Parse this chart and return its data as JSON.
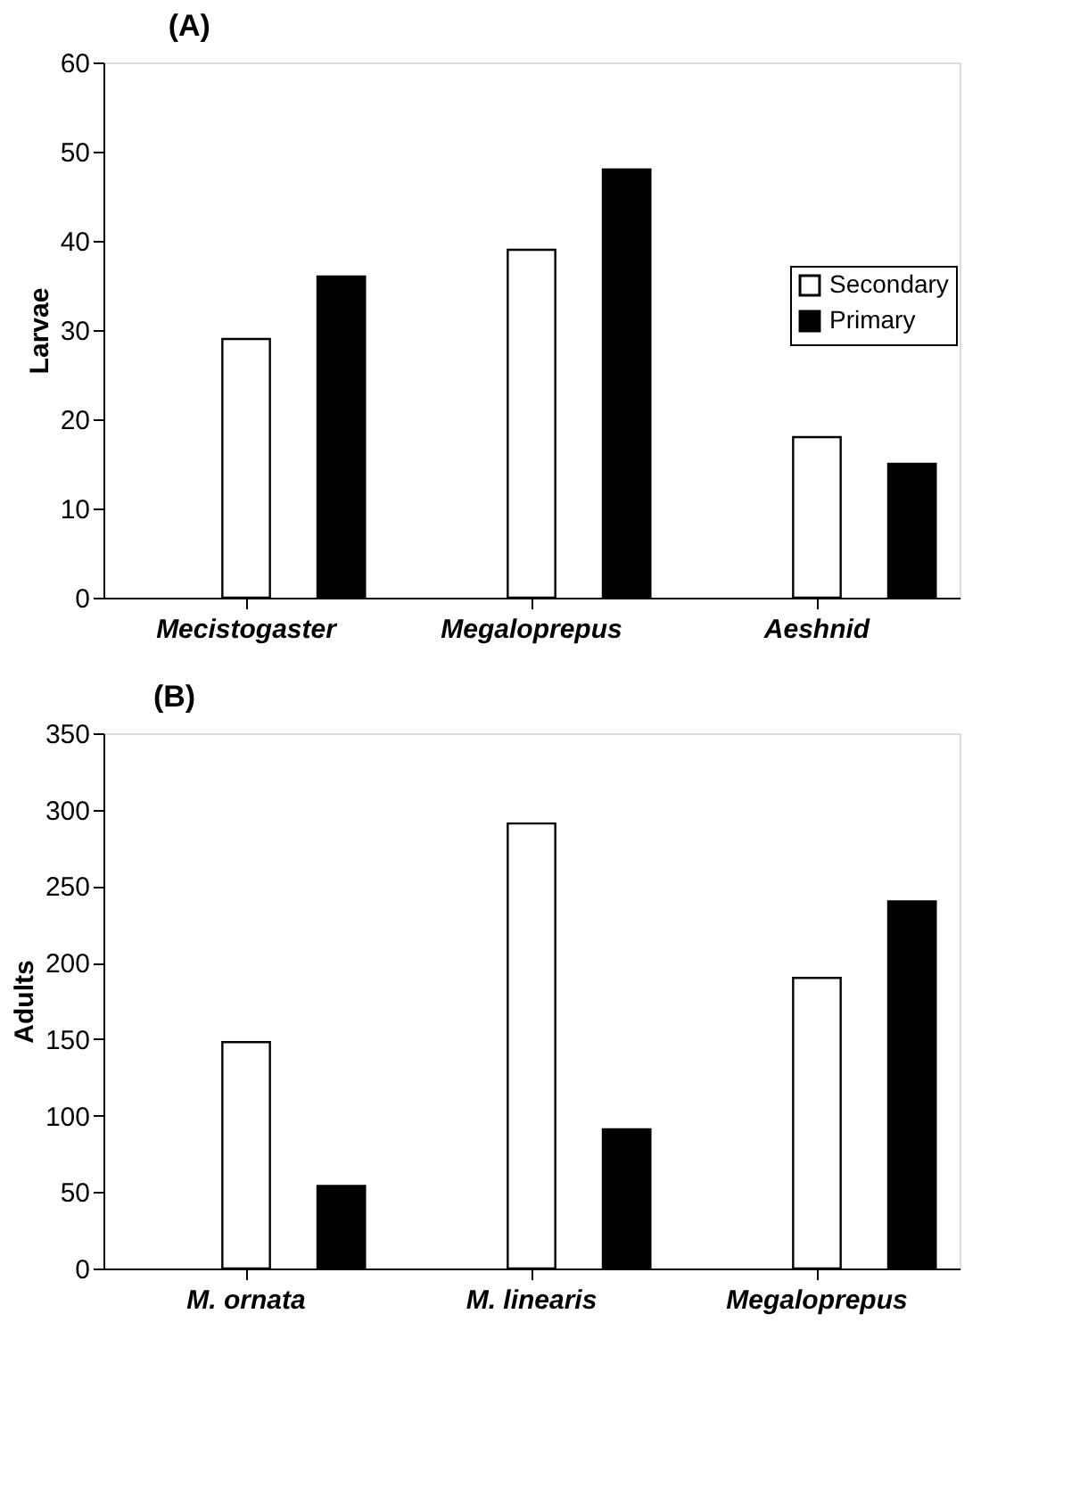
{
  "chart_data": [
    {
      "type": "bar",
      "title": "(A)",
      "ylabel": "Larvae",
      "categories": [
        "Mecistogaster",
        "Megaloprepus",
        "Aeshnid"
      ],
      "series": [
        {
          "name": "Secondary",
          "color": "#ffffff",
          "values": [
            29,
            39,
            18
          ]
        },
        {
          "name": "Primary",
          "color": "#000000",
          "values": [
            36,
            48,
            15
          ]
        }
      ],
      "ylim": [
        0,
        60
      ],
      "yticks": [
        0,
        10,
        20,
        30,
        40,
        50,
        60
      ],
      "legend": "right",
      "grid": false
    },
    {
      "type": "bar",
      "title": "(B)",
      "ylabel": "Adults",
      "categories": [
        "M. ornata",
        "M. linearis",
        "Megaloprepus"
      ],
      "series": [
        {
          "color": "#ffffff",
          "values": [
            148,
            291,
            190
          ]
        },
        {
          "color": "#000000",
          "values": [
            54,
            91,
            240
          ]
        }
      ],
      "ylim": [
        0,
        350
      ],
      "yticks": [
        0,
        50,
        100,
        150,
        200,
        250,
        300,
        350
      ],
      "grid": false
    }
  ]
}
